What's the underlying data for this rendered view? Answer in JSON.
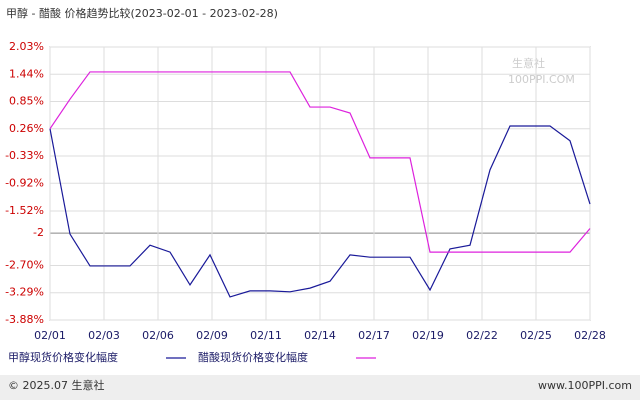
{
  "chart_data": {
    "type": "line",
    "title": "甲醇 - 醋酸 价格趋势比较(2023-02-01 - 2023-02-28)",
    "x_labels": [
      "02/01",
      "02/03",
      "02/06",
      "02/09",
      "02/11",
      "02/14",
      "02/17",
      "02/19",
      "02/22",
      "02/25",
      "02/28"
    ],
    "ylim": [
      -3.88,
      2.03
    ],
    "yticks": [
      {
        "value": 2.03,
        "label": "2.03%"
      },
      {
        "value": 1.44,
        "label": "1.44%"
      },
      {
        "value": 0.85,
        "label": "0.85%"
      },
      {
        "value": 0.26,
        "label": "0.26%"
      },
      {
        "value": -0.33,
        "label": "-0.33%"
      },
      {
        "value": -0.92,
        "label": "-0.92%"
      },
      {
        "value": -1.52,
        "label": "-1.52%"
      },
      -2,
      {
        "value": -2.7,
        "label": "-2.70%"
      },
      {
        "value": -3.29,
        "label": "-3.29%"
      },
      {
        "value": -3.88,
        "label": "-3.88%"
      }
    ],
    "grid": true,
    "series": [
      {
        "name": "甲醇现货价格变化幅度",
        "color": "#1a1a99",
        "values": [
          0.26,
          -2.02,
          -2.71,
          -2.71,
          -2.71,
          -2.26,
          -2.41,
          -3.12,
          -2.47,
          -3.38,
          -3.25,
          -3.25,
          -3.27,
          -3.19,
          -3.04,
          -2.47,
          -2.52,
          -2.52,
          -2.52,
          -3.23,
          -2.34,
          -2.26,
          -0.63,
          0.32,
          0.32,
          0.32,
          0.0,
          -1.37
        ]
      },
      {
        "name": "醋酸现货价格变化幅度",
        "color": "#dd22dd",
        "values": [
          0.26,
          0.9,
          1.49,
          1.49,
          1.49,
          1.49,
          1.49,
          1.49,
          1.49,
          1.49,
          1.49,
          1.49,
          1.49,
          0.73,
          0.73,
          0.6,
          -0.37,
          -0.37,
          -0.37,
          -2.41,
          -2.41,
          -2.41,
          -2.41,
          -2.41,
          -2.41,
          -2.41,
          -2.41,
          -1.9
        ]
      }
    ],
    "footer_left": "© 2025.07 生意社",
    "footer_right": "www.100PPI.com",
    "watermark": "生意社",
    "watermark_sub": "100PPI.COM"
  }
}
